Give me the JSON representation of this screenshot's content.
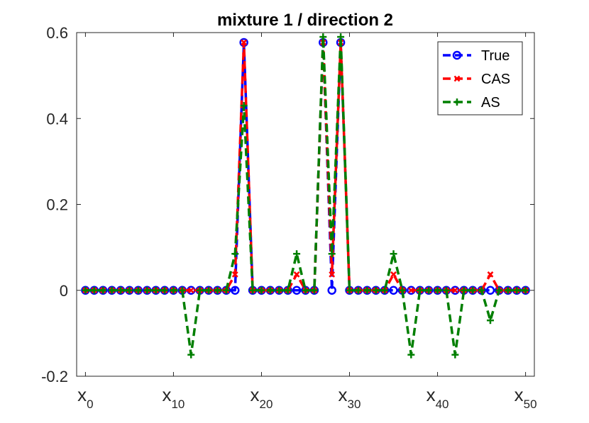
{
  "chart_data": {
    "type": "line",
    "title": "mixture 1 / direction 2",
    "xlabel": "",
    "ylabel": "",
    "xlim": [
      -1,
      51
    ],
    "ylim": [
      -0.2,
      0.6
    ],
    "yticks": [
      {
        "value": -0.2,
        "label": "-0.2"
      },
      {
        "value": 0,
        "label": "0"
      },
      {
        "value": 0.2,
        "label": "0.2"
      },
      {
        "value": 0.4,
        "label": "0.4"
      },
      {
        "value": 0.6,
        "label": "0.6"
      }
    ],
    "xticks": [
      {
        "value": 0,
        "base": "x",
        "sub": "0"
      },
      {
        "value": 10,
        "base": "x",
        "sub": "10"
      },
      {
        "value": 20,
        "base": "x",
        "sub": "20"
      },
      {
        "value": 30,
        "base": "x",
        "sub": "30"
      },
      {
        "value": 40,
        "base": "x",
        "sub": "40"
      },
      {
        "value": 50,
        "base": "x",
        "sub": "50"
      }
    ],
    "grid": false,
    "legend_position": "top-right",
    "x": [
      0,
      1,
      2,
      3,
      4,
      5,
      6,
      7,
      8,
      9,
      10,
      11,
      12,
      13,
      14,
      15,
      16,
      17,
      18,
      19,
      20,
      21,
      22,
      23,
      24,
      25,
      26,
      27,
      28,
      29,
      30,
      31,
      32,
      33,
      34,
      35,
      36,
      37,
      38,
      39,
      40,
      41,
      42,
      43,
      44,
      45,
      46,
      47,
      48,
      49,
      50
    ],
    "series": [
      {
        "name": "True",
        "color": "#0000ff",
        "marker": "circle",
        "values": [
          0,
          0,
          0,
          0,
          0,
          0,
          0,
          0,
          0,
          0,
          0,
          0,
          0,
          0,
          0,
          0,
          0,
          0,
          0.577,
          0,
          0,
          0,
          0,
          0,
          0,
          0,
          0,
          0.577,
          0,
          0.577,
          0,
          0,
          0,
          0,
          0,
          0,
          0,
          0,
          0,
          0,
          0,
          0,
          0,
          0,
          0,
          0,
          0,
          0,
          0,
          0,
          0
        ]
      },
      {
        "name": "CAS",
        "color": "#ff0000",
        "marker": "x",
        "values": [
          0,
          0,
          0,
          0,
          0,
          0,
          0,
          0,
          0,
          0,
          0,
          0,
          0,
          0,
          0,
          0,
          0,
          0.037,
          0.577,
          0,
          0,
          0,
          0,
          0,
          0.037,
          0,
          0,
          0.577,
          0.037,
          0.577,
          0,
          0,
          0,
          0,
          0,
          0.037,
          0,
          0,
          0,
          0,
          0,
          0,
          0,
          0,
          0,
          0,
          0.037,
          0,
          0,
          0,
          0
        ]
      },
      {
        "name": "AS",
        "color": "#007f00",
        "marker": "plus",
        "values": [
          0,
          0,
          0,
          0,
          0,
          0,
          0,
          0,
          0,
          0,
          0,
          0,
          -0.15,
          0,
          0,
          0,
          0,
          0.085,
          0.43,
          0,
          0,
          0,
          0,
          0,
          0.085,
          0,
          0,
          0.59,
          0.085,
          0.59,
          0,
          0,
          0,
          0,
          0,
          0.085,
          0,
          -0.15,
          0,
          0,
          0,
          0,
          -0.15,
          0,
          0,
          0,
          -0.07,
          0,
          0,
          0,
          0
        ]
      }
    ]
  }
}
